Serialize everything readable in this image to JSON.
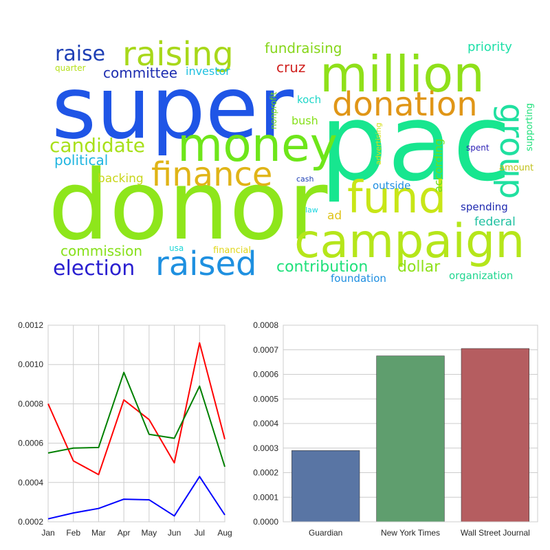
{
  "wordcloud": {
    "words": [
      {
        "text": "super",
        "color": "#1f55e6"
      },
      {
        "text": "pac",
        "color": "#17e68f"
      },
      {
        "text": "donor",
        "color": "#8ee61b"
      },
      {
        "text": "million",
        "color": "#8fe01a"
      },
      {
        "text": "money",
        "color": "#6ee61a"
      },
      {
        "text": "campaign",
        "color": "#b5e61a"
      },
      {
        "text": "fund",
        "color": "#c8e617"
      },
      {
        "text": "raised",
        "color": "#1e90e0"
      },
      {
        "text": "finance",
        "color": "#e0b417"
      },
      {
        "text": "donation",
        "color": "#e09617"
      },
      {
        "text": "raising",
        "color": "#a8d81a"
      },
      {
        "text": "group",
        "color": "#20e0a0"
      },
      {
        "text": "raise",
        "color": "#1e3fb5"
      },
      {
        "text": "candidate",
        "color": "#a8e01a"
      },
      {
        "text": "election",
        "color": "#2a1fd0"
      },
      {
        "text": "contribution",
        "color": "#1ee07a"
      },
      {
        "text": "dollar",
        "color": "#8ee01a"
      },
      {
        "text": "fundraising",
        "color": "#86d61a"
      },
      {
        "text": "committee",
        "color": "#1c2cb0"
      },
      {
        "text": "political",
        "color": "#1fb5e0"
      },
      {
        "text": "commission",
        "color": "#86e01a"
      },
      {
        "text": "backing",
        "color": "#c8d61a"
      },
      {
        "text": "cruz",
        "color": "#d0201e"
      },
      {
        "text": "priority",
        "color": "#1ee0a8"
      },
      {
        "text": "investor",
        "color": "#1ec0e0"
      },
      {
        "text": "quarter",
        "color": "#b5e01a"
      },
      {
        "text": "koch",
        "color": "#1ed6c8"
      },
      {
        "text": "bush",
        "color": "#86e01a"
      },
      {
        "text": "nonprofit",
        "color": "#6ed61a"
      },
      {
        "text": "advertising",
        "color": "#d6e01a"
      },
      {
        "text": "according",
        "color": "#6ee01a"
      },
      {
        "text": "outside",
        "color": "#1e8ee0"
      },
      {
        "text": "supporting",
        "color": "#1ee07a"
      },
      {
        "text": "spent",
        "color": "#2a1fb5"
      },
      {
        "text": "amount",
        "color": "#c0c01a"
      },
      {
        "text": "cash",
        "color": "#1e3fb5"
      },
      {
        "text": "law",
        "color": "#1ed6e0"
      },
      {
        "text": "spending",
        "color": "#1f2ab0"
      },
      {
        "text": "ad",
        "color": "#e0c41a"
      },
      {
        "text": "federal",
        "color": "#1ec0a0"
      },
      {
        "text": "usa",
        "color": "#1ed6d6"
      },
      {
        "text": "financial",
        "color": "#e0d61a"
      },
      {
        "text": "foundation",
        "color": "#1e8ee0"
      },
      {
        "text": "organization",
        "color": "#20d690"
      }
    ]
  },
  "chart_data": [
    {
      "type": "line",
      "x": [
        "Jan",
        "Feb",
        "Mar",
        "Apr",
        "May",
        "Jun",
        "Jul",
        "Aug"
      ],
      "ylim": [
        0.0002,
        0.0012
      ],
      "yticks": [
        "0.0002",
        "0.0004",
        "0.0006",
        "0.0008",
        "0.0010",
        "0.0012"
      ],
      "grid": true,
      "series": [
        {
          "color": "#ff0000",
          "values": [
            0.0008,
            0.00051,
            0.00044,
            0.00082,
            0.00072,
            0.0005,
            0.00111,
            0.00062
          ]
        },
        {
          "color": "#008000",
          "values": [
            0.00055,
            0.000575,
            0.000578,
            0.00096,
            0.000645,
            0.000625,
            0.00089,
            0.00048
          ]
        },
        {
          "color": "#0000ff",
          "values": [
            0.000215,
            0.000245,
            0.000268,
            0.000315,
            0.000312,
            0.00023,
            0.00043,
            0.000235
          ]
        }
      ]
    },
    {
      "type": "bar",
      "categories": [
        "Guardian",
        "New York Times",
        "Wall Street Journal"
      ],
      "values": [
        0.00029,
        0.000675,
        0.000705
      ],
      "colors": [
        "#5975a4",
        "#5f9e6e",
        "#b55d60"
      ],
      "ylim": [
        0,
        0.0008
      ],
      "yticks": [
        "0.0000",
        "0.0001",
        "0.0002",
        "0.0003",
        "0.0004",
        "0.0005",
        "0.0006",
        "0.0007",
        "0.0008"
      ],
      "grid": true
    }
  ]
}
